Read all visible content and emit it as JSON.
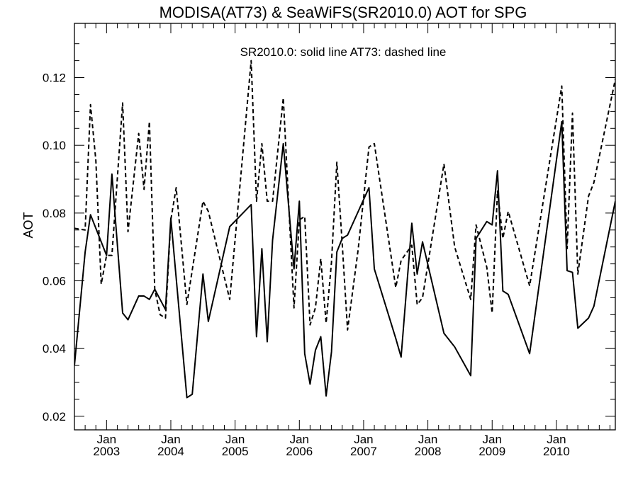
{
  "chart_data": {
    "type": "line",
    "title": "MODISA(AT73) & SeaWiFS(SR2010.0)  AOT for SPG",
    "annotation": "SR2010.0: solid line   AT73: dashed line",
    "ylabel": "AOT",
    "xlabel": "",
    "xlim": [
      "2002-07-01",
      "2010-12-01"
    ],
    "ylim": [
      0.016,
      0.136
    ],
    "yticks": [
      0.02,
      0.04,
      0.06,
      0.08,
      0.1,
      0.12
    ],
    "ytick_labels": [
      "0.02",
      "0.04",
      "0.06",
      "0.08",
      "0.10",
      "0.12"
    ],
    "xticks": [
      {
        "date": "2003-01-01",
        "month": "Jan",
        "year": "2003"
      },
      {
        "date": "2004-01-01",
        "month": "Jan",
        "year": "2004"
      },
      {
        "date": "2005-01-01",
        "month": "Jan",
        "year": "2005"
      },
      {
        "date": "2006-01-01",
        "month": "Jan",
        "year": "2006"
      },
      {
        "date": "2007-01-01",
        "month": "Jan",
        "year": "2007"
      },
      {
        "date": "2008-01-01",
        "month": "Jan",
        "year": "2008"
      },
      {
        "date": "2009-01-01",
        "month": "Jan",
        "year": "2009"
      },
      {
        "date": "2010-01-01",
        "month": "Jan",
        "year": "2010"
      }
    ],
    "grid": false,
    "series": [
      {
        "name": "SR2010.0",
        "style": "solid",
        "color": "#000000",
        "points": [
          [
            "2002-07-01",
            0.035
          ],
          [
            "2002-09-01",
            0.0685
          ],
          [
            "2002-10-01",
            0.0795
          ],
          [
            "2002-11-01",
            0.0755
          ],
          [
            "2002-12-01",
            0.0715
          ],
          [
            "2003-01-01",
            0.0675
          ],
          [
            "2003-02-01",
            0.0915
          ],
          [
            "2003-04-01",
            0.0505
          ],
          [
            "2003-05-01",
            0.0485
          ],
          [
            "2003-07-01",
            0.0555
          ],
          [
            "2003-08-01",
            0.0555
          ],
          [
            "2003-09-01",
            0.0545
          ],
          [
            "2003-10-01",
            0.0575
          ],
          [
            "2003-11-01",
            0.0545
          ],
          [
            "2003-12-01",
            0.0515
          ],
          [
            "2004-01-01",
            0.0785
          ],
          [
            "2004-04-01",
            0.0255
          ],
          [
            "2004-05-01",
            0.0265
          ],
          [
            "2004-07-01",
            0.062
          ],
          [
            "2004-08-01",
            0.048
          ],
          [
            "2004-12-01",
            0.076
          ],
          [
            "2005-04-01",
            0.0825
          ],
          [
            "2005-05-01",
            0.0435
          ],
          [
            "2005-06-01",
            0.0695
          ],
          [
            "2005-07-01",
            0.042
          ],
          [
            "2005-08-01",
            0.072
          ],
          [
            "2005-10-01",
            0.1005
          ],
          [
            "2005-12-01",
            0.0635
          ],
          [
            "2006-01-01",
            0.0835
          ],
          [
            "2006-02-01",
            0.0385
          ],
          [
            "2006-03-01",
            0.0295
          ],
          [
            "2006-04-01",
            0.0395
          ],
          [
            "2006-05-01",
            0.0435
          ],
          [
            "2006-06-01",
            0.026
          ],
          [
            "2006-07-01",
            0.039
          ],
          [
            "2006-08-01",
            0.0685
          ],
          [
            "2006-09-01",
            0.0725
          ],
          [
            "2006-10-01",
            0.0735
          ],
          [
            "2006-12-01",
            0.0805
          ],
          [
            "2007-02-01",
            0.0875
          ],
          [
            "2007-03-01",
            0.0635
          ],
          [
            "2007-07-01",
            0.043
          ],
          [
            "2007-08-01",
            0.0375
          ],
          [
            "2007-10-01",
            0.077
          ],
          [
            "2007-11-01",
            0.062
          ],
          [
            "2007-12-01",
            0.0715
          ],
          [
            "2008-04-01",
            0.0445
          ],
          [
            "2008-06-01",
            0.0405
          ],
          [
            "2008-09-01",
            0.032
          ],
          [
            "2008-10-01",
            0.0725
          ],
          [
            "2008-12-01",
            0.0775
          ],
          [
            "2009-01-01",
            0.0765
          ],
          [
            "2009-02-01",
            0.0925
          ],
          [
            "2009-03-01",
            0.057
          ],
          [
            "2009-04-01",
            0.056
          ],
          [
            "2009-08-01",
            0.0385
          ],
          [
            "2010-02-01",
            0.107
          ],
          [
            "2010-03-01",
            0.063
          ],
          [
            "2010-04-01",
            0.0625
          ],
          [
            "2010-05-01",
            0.046
          ],
          [
            "2010-07-01",
            0.049
          ],
          [
            "2010-08-01",
            0.0525
          ],
          [
            "2010-12-01",
            0.0835
          ]
        ]
      },
      {
        "name": "AT73",
        "style": "dashed",
        "color": "#000000",
        "points": [
          [
            "2002-07-01",
            0.0755
          ],
          [
            "2002-09-01",
            0.075
          ],
          [
            "2002-10-01",
            0.112
          ],
          [
            "2002-11-01",
            0.0955
          ],
          [
            "2002-12-01",
            0.059
          ],
          [
            "2003-01-01",
            0.0675
          ],
          [
            "2003-02-01",
            0.0675
          ],
          [
            "2003-04-01",
            0.1125
          ],
          [
            "2003-05-01",
            0.0745
          ],
          [
            "2003-07-01",
            0.1035
          ],
          [
            "2003-08-01",
            0.087
          ],
          [
            "2003-09-01",
            0.107
          ],
          [
            "2003-10-01",
            0.0575
          ],
          [
            "2003-11-01",
            0.05
          ],
          [
            "2003-12-01",
            0.049
          ],
          [
            "2004-01-01",
            0.078
          ],
          [
            "2004-02-01",
            0.0875
          ],
          [
            "2004-04-01",
            0.053
          ],
          [
            "2004-07-01",
            0.0835
          ],
          [
            "2004-08-01",
            0.0805
          ],
          [
            "2004-12-01",
            0.0545
          ],
          [
            "2005-04-01",
            0.125
          ],
          [
            "2005-05-01",
            0.0835
          ],
          [
            "2005-06-01",
            0.1005
          ],
          [
            "2005-07-01",
            0.0835
          ],
          [
            "2005-08-01",
            0.0835
          ],
          [
            "2005-10-01",
            0.114
          ],
          [
            "2005-12-01",
            0.052
          ],
          [
            "2006-01-01",
            0.078
          ],
          [
            "2006-02-01",
            0.079
          ],
          [
            "2006-03-01",
            0.047
          ],
          [
            "2006-04-01",
            0.052
          ],
          [
            "2006-05-01",
            0.0665
          ],
          [
            "2006-06-01",
            0.0475
          ],
          [
            "2006-07-01",
            0.0655
          ],
          [
            "2006-08-01",
            0.095
          ],
          [
            "2006-09-01",
            0.071
          ],
          [
            "2006-10-01",
            0.0455
          ],
          [
            "2006-12-01",
            0.0695
          ],
          [
            "2007-02-01",
            0.0995
          ],
          [
            "2007-03-01",
            0.1005
          ],
          [
            "2007-07-01",
            0.058
          ],
          [
            "2007-08-01",
            0.066
          ],
          [
            "2007-10-01",
            0.0705
          ],
          [
            "2007-11-01",
            0.053
          ],
          [
            "2007-12-01",
            0.055
          ],
          [
            "2008-04-01",
            0.0945
          ],
          [
            "2008-06-01",
            0.07
          ],
          [
            "2008-09-01",
            0.0545
          ],
          [
            "2008-10-01",
            0.0765
          ],
          [
            "2008-12-01",
            0.064
          ],
          [
            "2009-01-01",
            0.0505
          ],
          [
            "2009-02-01",
            0.0865
          ],
          [
            "2009-03-01",
            0.0725
          ],
          [
            "2009-04-01",
            0.0805
          ],
          [
            "2009-08-01",
            0.0585
          ],
          [
            "2010-02-01",
            0.1175
          ],
          [
            "2010-03-01",
            0.0695
          ],
          [
            "2010-04-01",
            0.1095
          ],
          [
            "2010-05-01",
            0.062
          ],
          [
            "2010-07-01",
            0.085
          ],
          [
            "2010-08-01",
            0.089
          ],
          [
            "2010-12-01",
            0.1195
          ]
        ]
      }
    ]
  }
}
